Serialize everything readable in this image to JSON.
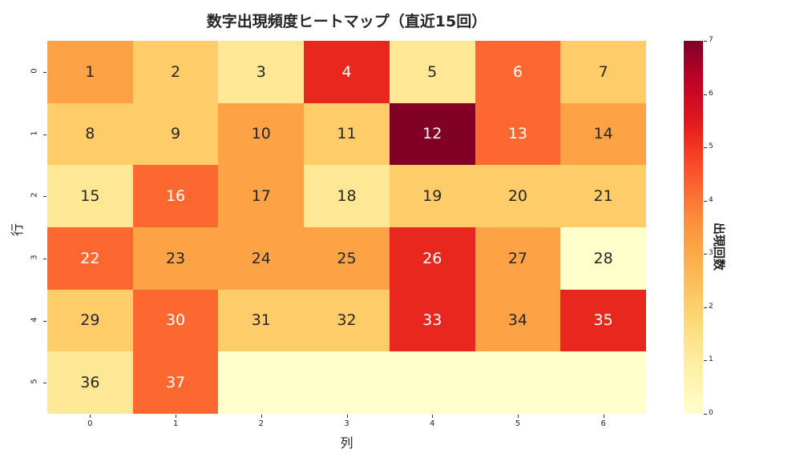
{
  "title": "数字出現頻度ヒートマップ（直近15回）",
  "xlabel": "列",
  "ylabel": "行",
  "colorbar_label": "出現回数",
  "x_ticks": [
    "0",
    "1",
    "2",
    "3",
    "4",
    "5",
    "6"
  ],
  "y_ticks": [
    "0",
    "1",
    "2",
    "3",
    "4",
    "5"
  ],
  "colorbar_ticks": [
    "0",
    "1",
    "2",
    "3",
    "4",
    "5",
    "6",
    "7"
  ],
  "colors": {
    "0": "#ffffcc",
    "1": "#ffe895",
    "2": "#fecc68",
    "3": "#fda245",
    "4": "#fd6831",
    "5": "#e8281f",
    "6": "#c4091f",
    "7": "#800026"
  },
  "cells": [
    [
      {
        "n": "1",
        "v": 3
      },
      {
        "n": "2",
        "v": 2
      },
      {
        "n": "3",
        "v": 1
      },
      {
        "n": "4",
        "v": 5
      },
      {
        "n": "5",
        "v": 1
      },
      {
        "n": "6",
        "v": 4
      },
      {
        "n": "7",
        "v": 2
      }
    ],
    [
      {
        "n": "8",
        "v": 2
      },
      {
        "n": "9",
        "v": 2
      },
      {
        "n": "10",
        "v": 3
      },
      {
        "n": "11",
        "v": 2
      },
      {
        "n": "12",
        "v": 7
      },
      {
        "n": "13",
        "v": 4
      },
      {
        "n": "14",
        "v": 3
      }
    ],
    [
      {
        "n": "15",
        "v": 1
      },
      {
        "n": "16",
        "v": 4
      },
      {
        "n": "17",
        "v": 3
      },
      {
        "n": "18",
        "v": 1
      },
      {
        "n": "19",
        "v": 2
      },
      {
        "n": "20",
        "v": 2
      },
      {
        "n": "21",
        "v": 2
      }
    ],
    [
      {
        "n": "22",
        "v": 4
      },
      {
        "n": "23",
        "v": 3
      },
      {
        "n": "24",
        "v": 3
      },
      {
        "n": "25",
        "v": 3
      },
      {
        "n": "26",
        "v": 5
      },
      {
        "n": "27",
        "v": 3
      },
      {
        "n": "28",
        "v": 0
      }
    ],
    [
      {
        "n": "29",
        "v": 2
      },
      {
        "n": "30",
        "v": 4
      },
      {
        "n": "31",
        "v": 2
      },
      {
        "n": "32",
        "v": 2
      },
      {
        "n": "33",
        "v": 5
      },
      {
        "n": "34",
        "v": 3
      },
      {
        "n": "35",
        "v": 5
      }
    ],
    [
      {
        "n": "36",
        "v": 1
      },
      {
        "n": "37",
        "v": 4
      },
      {
        "n": "",
        "v": 0
      },
      {
        "n": "",
        "v": 0
      },
      {
        "n": "",
        "v": 0
      },
      {
        "n": "",
        "v": 0
      },
      {
        "n": "",
        "v": 0
      }
    ]
  ],
  "chart_data": {
    "type": "heatmap",
    "title": "数字出現頻度ヒートマップ（直近15回）",
    "xlabel": "列",
    "ylabel": "行",
    "x": [
      0,
      1,
      2,
      3,
      4,
      5,
      6
    ],
    "y": [
      0,
      1,
      2,
      3,
      4,
      5
    ],
    "values": [
      [
        3,
        2,
        1,
        5,
        1,
        4,
        2
      ],
      [
        2,
        2,
        3,
        2,
        7,
        4,
        3
      ],
      [
        1,
        4,
        3,
        1,
        2,
        2,
        2
      ],
      [
        4,
        3,
        3,
        3,
        5,
        3,
        0
      ],
      [
        2,
        4,
        2,
        2,
        5,
        3,
        5
      ],
      [
        1,
        4,
        0,
        0,
        0,
        0,
        0
      ]
    ],
    "annotations": [
      [
        "1",
        "2",
        "3",
        "4",
        "5",
        "6",
        "7"
      ],
      [
        "8",
        "9",
        "10",
        "11",
        "12",
        "13",
        "14"
      ],
      [
        "15",
        "16",
        "17",
        "18",
        "19",
        "20",
        "21"
      ],
      [
        "22",
        "23",
        "24",
        "25",
        "26",
        "27",
        "28"
      ],
      [
        "29",
        "30",
        "31",
        "32",
        "33",
        "34",
        "35"
      ],
      [
        "36",
        "37",
        "",
        "",
        "",
        "",
        ""
      ]
    ],
    "colormap": "YlOrRd",
    "colorbar": {
      "label": "出現回数",
      "range": [
        0,
        7
      ],
      "ticks": [
        0,
        1,
        2,
        3,
        4,
        5,
        6,
        7
      ]
    },
    "grid": false
  }
}
